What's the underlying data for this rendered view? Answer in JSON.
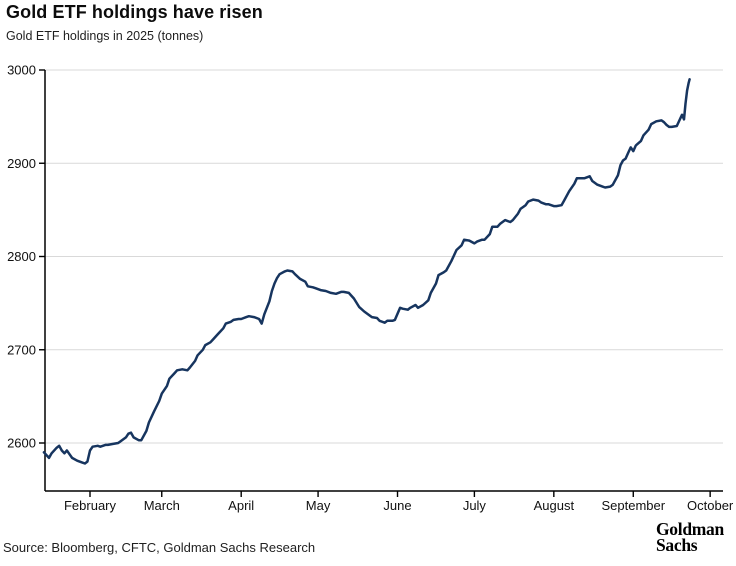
{
  "page": {
    "title": "Gold ETF holdings have risen",
    "subtitle": "Gold ETF holdings in 2025 (tonnes)",
    "source": "Source: Bloomberg, CFTC, Goldman Sachs Research",
    "logo": {
      "line1": "Goldman",
      "line2": "Sachs"
    }
  },
  "chart_data": {
    "type": "line",
    "title": "Gold ETF holdings have risen",
    "subtitle": "Gold ETF holdings in 2025 (tonnes)",
    "ylabel": "tonnes",
    "ylim": [
      2545,
      3010
    ],
    "y_ticks": [
      2600,
      2700,
      2800,
      2900,
      3000
    ],
    "x_tick_labels": [
      "February",
      "March",
      "April",
      "May",
      "June",
      "July",
      "August",
      "September",
      "October"
    ],
    "x_tick_day_of_year": [
      32,
      60,
      91,
      121,
      152,
      182,
      213,
      244,
      274
    ],
    "x_range_day_of_year": [
      14,
      266
    ],
    "x_start_date": "2025-01-14",
    "x_end_date": "2025-09-23",
    "grid": "horizontal",
    "legend": "none",
    "line_color": "#17355f",
    "grid_color": "#d9d9d9",
    "axis_color": "#000000",
    "series": [
      {
        "name": "Gold ETF holdings (tonnes)",
        "x_day_of_year": [
          14,
          16,
          17,
          19,
          20,
          21,
          22,
          23,
          24,
          25,
          27,
          29,
          30,
          31,
          32,
          33,
          35,
          36,
          38,
          39,
          41,
          43,
          44,
          46,
          47,
          48,
          49,
          51,
          52,
          54,
          55,
          57,
          59,
          60,
          62,
          63,
          65,
          66,
          68,
          70,
          71,
          73,
          74,
          76,
          77,
          79,
          80,
          82,
          84,
          85,
          87,
          88,
          90,
          91,
          93,
          94,
          96,
          98,
          99,
          100,
          102,
          103,
          104,
          105,
          106,
          108,
          109,
          111,
          112,
          114,
          116,
          117,
          119,
          120,
          122,
          124,
          126,
          128,
          130,
          131,
          133,
          135,
          137,
          139,
          141,
          142,
          144,
          145,
          147,
          148,
          150,
          151,
          153,
          154,
          156,
          157,
          159,
          160,
          162,
          164,
          165,
          167,
          168,
          170,
          171,
          173,
          174,
          175,
          177,
          178,
          180,
          182,
          183,
          185,
          186,
          188,
          189,
          191,
          192,
          194,
          196,
          197,
          199,
          200,
          202,
          203,
          205,
          207,
          208,
          210,
          211,
          213,
          214,
          216,
          217,
          219,
          221,
          222,
          224,
          225,
          227,
          228,
          230,
          232,
          233,
          235,
          236,
          238,
          239,
          240,
          241,
          242,
          243,
          244,
          245,
          247,
          248,
          250,
          251,
          253,
          255,
          256,
          257,
          258,
          259,
          261,
          262,
          263,
          263.8,
          264.4,
          265,
          265.6,
          266
        ],
        "values": [
          2590,
          2584,
          2589,
          2595,
          2597,
          2592,
          2589,
          2592,
          2588,
          2584,
          2581,
          2579,
          2578,
          2580,
          2592,
          2596,
          2597,
          2596,
          2598,
          2598,
          2599,
          2600,
          2602,
          2606,
          2610,
          2611,
          2606,
          2603,
          2603,
          2613,
          2622,
          2634,
          2645,
          2653,
          2661,
          2669,
          2675,
          2678,
          2679,
          2678,
          2681,
          2688,
          2694,
          2700,
          2705,
          2708,
          2711,
          2717,
          2723,
          2728,
          2730,
          2732,
          2733,
          2733,
          2735,
          2736,
          2735,
          2733,
          2728,
          2738,
          2752,
          2763,
          2771,
          2777,
          2781,
          2784,
          2785,
          2784,
          2781,
          2776,
          2773,
          2768,
          2767,
          2766,
          2764,
          2763,
          2761,
          2760,
          2762,
          2762,
          2761,
          2755,
          2746,
          2741,
          2737,
          2735,
          2734,
          2731,
          2729,
          2731,
          2731,
          2732,
          2745,
          2744,
          2743,
          2745,
          2748,
          2745,
          2748,
          2753,
          2761,
          2771,
          2780,
          2783,
          2785,
          2795,
          2801,
          2807,
          2812,
          2818,
          2817,
          2814,
          2816,
          2818,
          2818,
          2824,
          2832,
          2832,
          2835,
          2839,
          2837,
          2839,
          2846,
          2851,
          2855,
          2859,
          2861,
          2860,
          2858,
          2856,
          2856,
          2854,
          2854,
          2855,
          2860,
          2870,
          2878,
          2884,
          2884,
          2884,
          2886,
          2881,
          2877,
          2875,
          2874,
          2875,
          2877,
          2887,
          2898,
          2903,
          2905,
          2911,
          2917,
          2913,
          2919,
          2924,
          2930,
          2936,
          2942,
          2945,
          2946,
          2944,
          2941,
          2939,
          2939,
          2940,
          2946,
          2952,
          2947,
          2964,
          2978,
          2986,
          2990
        ]
      }
    ]
  }
}
